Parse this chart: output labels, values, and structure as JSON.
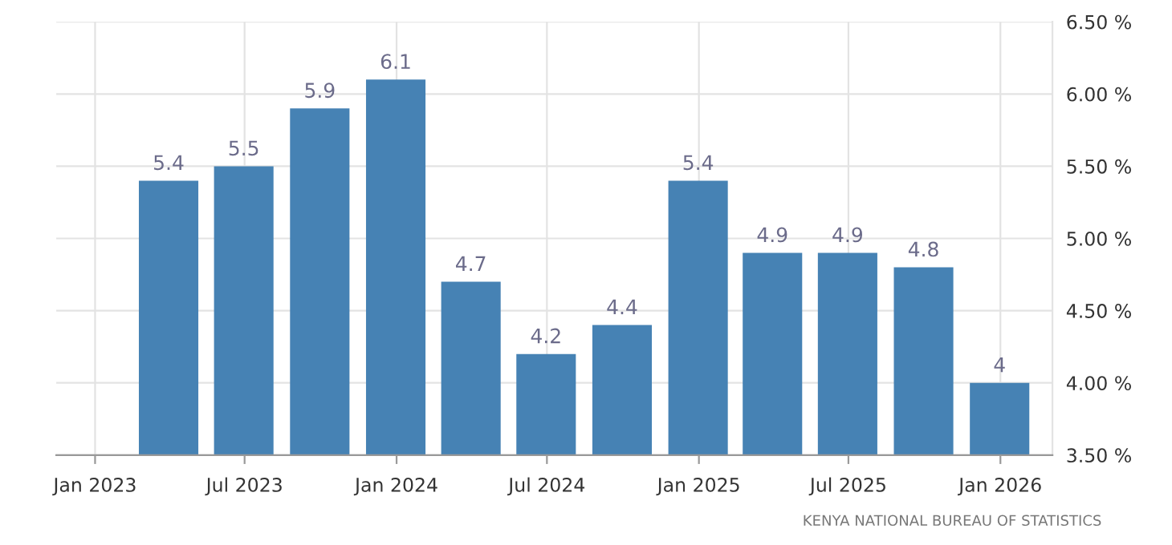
{
  "chart_data": {
    "type": "bar",
    "x": [
      "2023-03-31",
      "2023-06-30",
      "2023-09-30",
      "2023-12-31",
      "2024-03-31",
      "2024-06-30",
      "2024-09-30",
      "2024-12-31",
      "2025-03-31",
      "2025-06-30",
      "2025-09-30",
      "2025-12-31"
    ],
    "values": [
      5.4,
      5.5,
      5.9,
      6.1,
      4.7,
      4.2,
      4.4,
      5.4,
      4.9,
      4.9,
      4.8,
      4
    ],
    "color": "#4682b4",
    "data_labels": true,
    "value_labels": [
      "5.4",
      "5.5",
      "5.9",
      "6.1",
      "4.7",
      "4.2",
      "4.4",
      "5.4",
      "4.9",
      "4.9",
      "4.8",
      "4"
    ],
    "xlim": [
      "2022-11-15",
      "2026-03-05"
    ],
    "xticks": [
      {
        "value": "2023-01-01",
        "label": "Jan 2023"
      },
      {
        "value": "2023-07-01",
        "label": "Jul 2023"
      },
      {
        "value": "2024-01-01",
        "label": "Jan 2024"
      },
      {
        "value": "2024-07-01",
        "label": "Jul 2024"
      },
      {
        "value": "2025-01-01",
        "label": "Jan 2025"
      },
      {
        "value": "2025-07-01",
        "label": "Jul 2025"
      },
      {
        "value": "2026-01-01",
        "label": "Jan 2026"
      }
    ],
    "ylim": [
      3.5,
      6.5
    ],
    "yticks": [
      {
        "value": 3.5,
        "label": "3.50 %"
      },
      {
        "value": 4.0,
        "label": "4.00 %"
      },
      {
        "value": 4.5,
        "label": "4.50 %"
      },
      {
        "value": 5.0,
        "label": "5.00 %"
      },
      {
        "value": 5.5,
        "label": "5.50 %"
      },
      {
        "value": 6.0,
        "label": "6.00 %"
      },
      {
        "value": 6.5,
        "label": "6.50 %"
      }
    ],
    "grid": true,
    "annotations": [
      "KENYA NATIONAL BUREAU OF STATISTICS"
    ]
  }
}
